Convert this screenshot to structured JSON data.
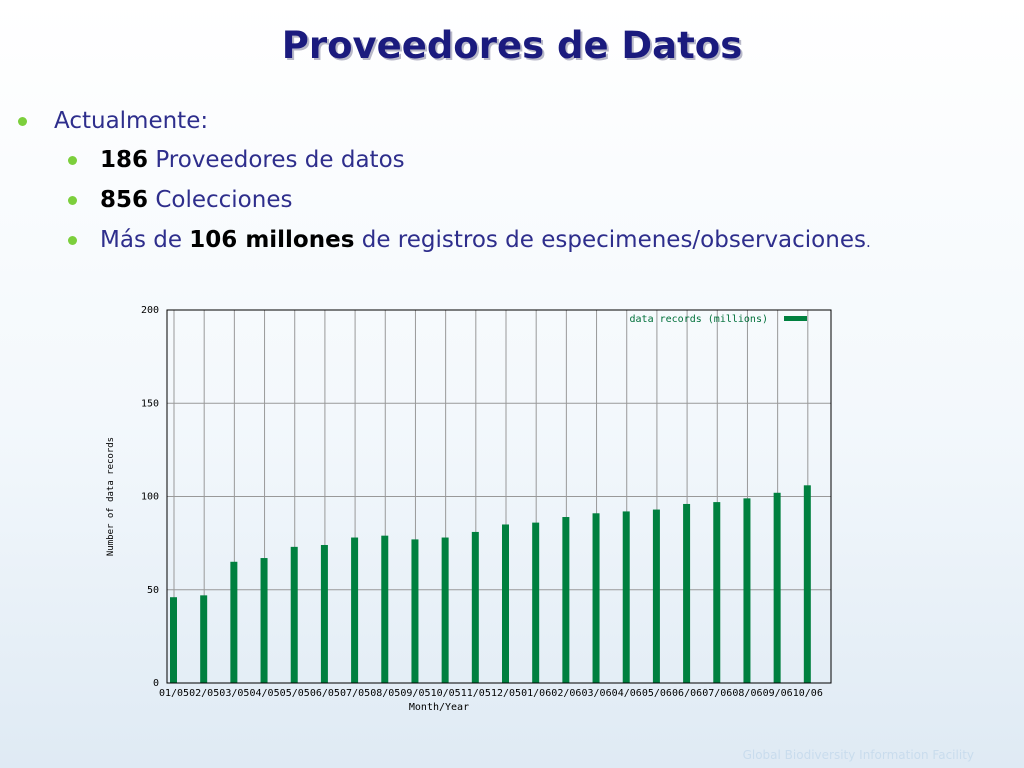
{
  "slide": {
    "title": "Proveedores de Datos",
    "intro": "Actualmente:",
    "items": [
      {
        "bold": "186",
        "text": " Proveedores de datos"
      },
      {
        "bold": "856",
        "text": " Colecciones"
      },
      {
        "pre": "Más de ",
        "bold": "106 millones",
        "text": " de registros de especimenes/observaciones",
        "dot": "."
      }
    ],
    "footer": "Global Biodiversity Information Facility"
  },
  "colors": {
    "title": "#1b1b7e",
    "text": "#2e2e8c",
    "bullet": "#7ccf3c",
    "bar": "#00803f",
    "grid": "#999999"
  },
  "chart_data": {
    "type": "bar",
    "xlabel": "Month/Year",
    "ylabel": "Number of data records",
    "ylim": [
      0,
      200
    ],
    "yticks": [
      0,
      50,
      100,
      150,
      200
    ],
    "grid": true,
    "legend_position": "top-right",
    "categories": [
      "01/05",
      "02/05",
      "03/05",
      "04/05",
      "05/05",
      "06/05",
      "07/05",
      "08/05",
      "09/05",
      "10/05",
      "11/05",
      "12/05",
      "01/06",
      "02/06",
      "03/06",
      "04/06",
      "05/06",
      "06/06",
      "07/06",
      "08/06",
      "09/06",
      "10/06"
    ],
    "series": [
      {
        "name": "data records (millions)",
        "values": [
          46,
          47,
          65,
          67,
          73,
          74,
          78,
          79,
          77,
          78,
          81,
          85,
          86,
          89,
          91,
          92,
          93,
          96,
          97,
          99,
          102,
          106
        ]
      }
    ]
  }
}
